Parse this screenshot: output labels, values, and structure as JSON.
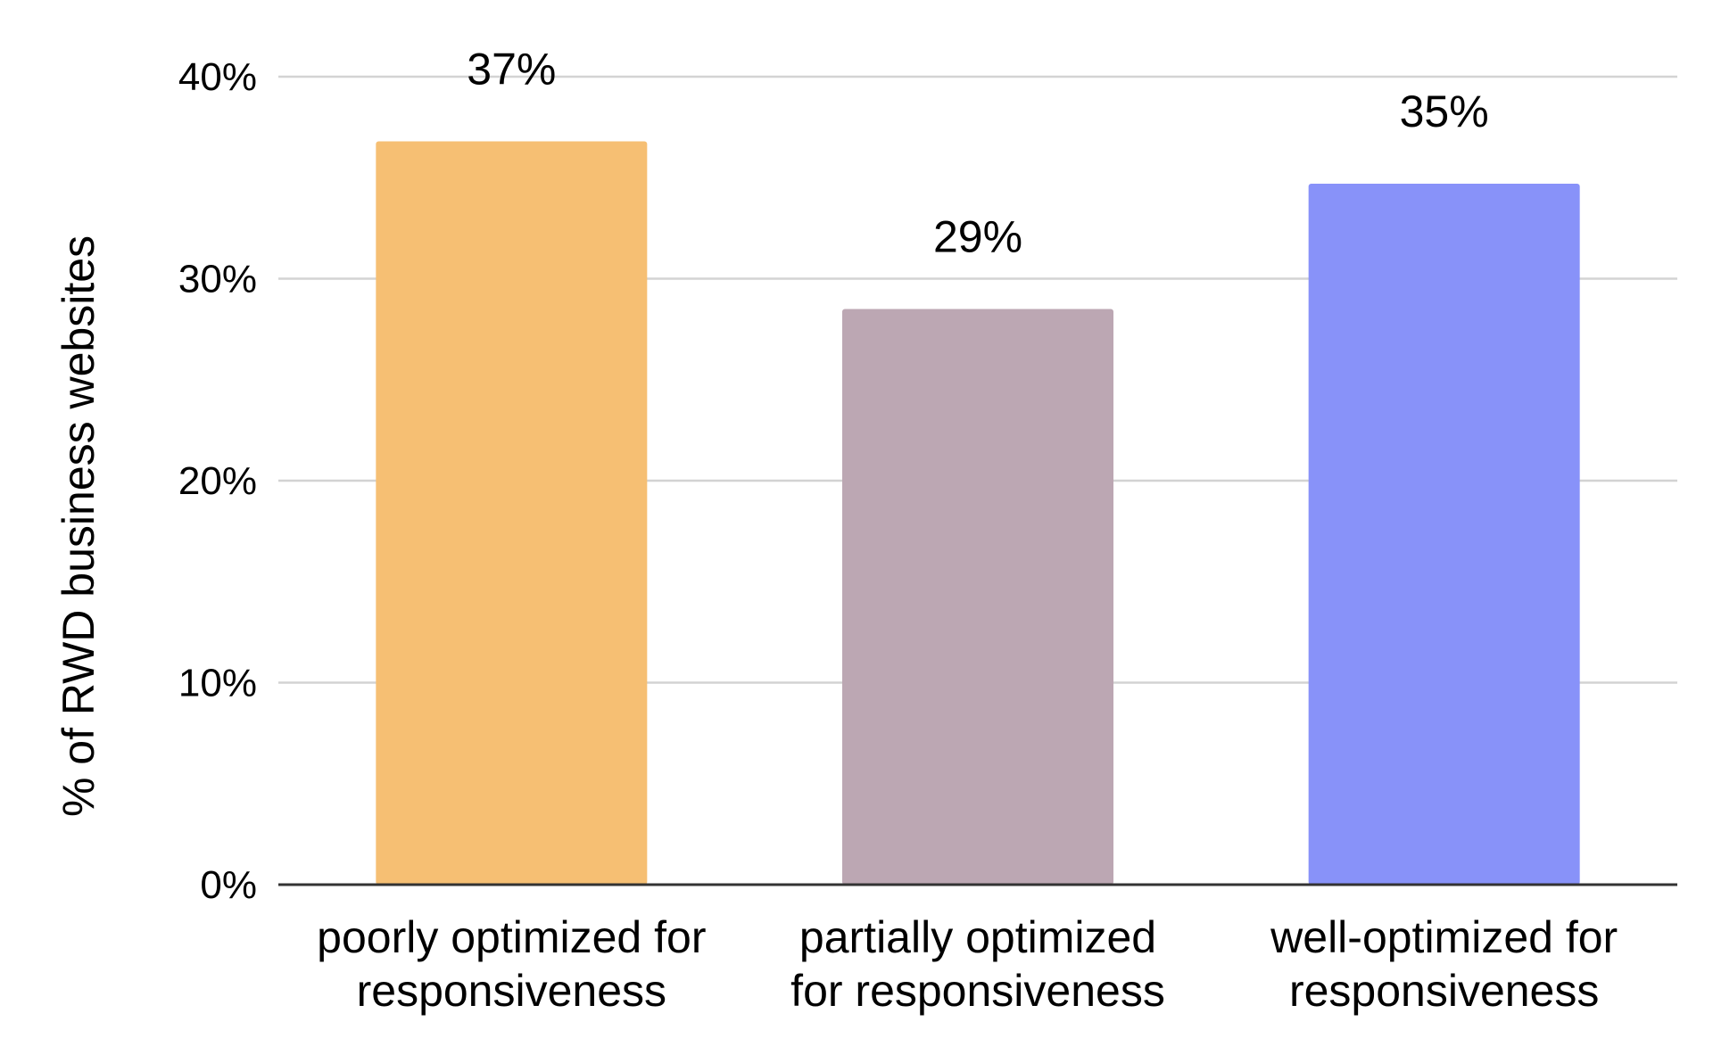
{
  "chart_data": {
    "type": "bar",
    "title": "",
    "xlabel": "",
    "ylabel": "% of RWD business websites",
    "categories": [
      [
        "poorly optimized for",
        "responsiveness"
      ],
      [
        "partially optimized",
        "for responsiveness"
      ],
      [
        "well-optimized for",
        "responsiveness"
      ]
    ],
    "values": [
      36.8,
      28.5,
      34.7
    ],
    "data_labels": [
      "37%",
      "29%",
      "35%"
    ],
    "colors": [
      "#F6BF73",
      "#BCA7B3",
      "#8892F9"
    ],
    "ylim": [
      0,
      40
    ],
    "yticks": [
      0,
      10,
      20,
      30,
      40
    ],
    "ytick_labels": [
      "0%",
      "10%",
      "20%",
      "30%",
      "40%"
    ],
    "grid": true,
    "legend": "none",
    "grid_color": "#D3D3D3",
    "axis_color": "#333333"
  }
}
